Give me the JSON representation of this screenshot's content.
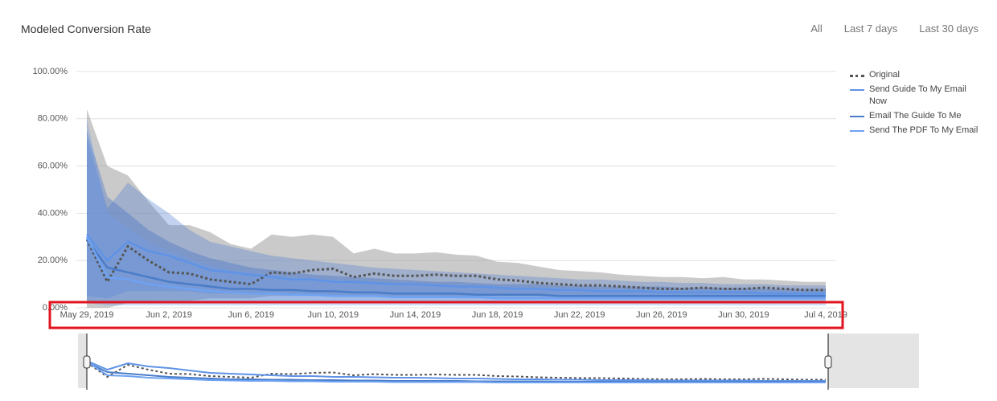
{
  "chart_data": {
    "type": "line",
    "title": "Modeled Conversion Rate",
    "range_buttons": [
      "All",
      "Last 7 days",
      "Last 30 days"
    ],
    "categories": [
      "May 29, 2019",
      null,
      null,
      null,
      "Jun 2, 2019",
      null,
      null,
      null,
      "Jun 6, 2019",
      null,
      null,
      null,
      "Jun 10, 2019",
      null,
      null,
      null,
      "Jun 14, 2019",
      null,
      null,
      null,
      "Jun 18, 2019",
      null,
      null,
      null,
      "Jun 22, 2019",
      null,
      null,
      null,
      "Jun 26, 2019",
      null,
      null,
      null,
      "Jun 30, 2019",
      null,
      null,
      null,
      "Jul 4, 2019"
    ],
    "ylim": [
      0,
      100
    ],
    "yticks": [
      {
        "value": 0,
        "label": "0.00%"
      },
      {
        "value": 20,
        "label": "20.00%"
      },
      {
        "value": 40,
        "label": "40.00%"
      },
      {
        "value": 60,
        "label": "60.00%"
      },
      {
        "value": 80,
        "label": "80.00%"
      },
      {
        "value": 100,
        "label": "100.00%"
      }
    ],
    "grid": true,
    "legend": "right",
    "series": [
      {
        "name": "Original",
        "color": "#555555",
        "line_style": "dotted",
        "band_color": "#9e9e9e",
        "values": [
          29,
          11,
          26,
          20,
          15,
          14.5,
          12,
          11,
          10,
          15,
          14.5,
          16,
          16.5,
          13,
          14.5,
          13.5,
          13.5,
          14,
          13.5,
          13.5,
          12,
          11.5,
          10.5,
          10,
          9.5,
          9.5,
          9,
          8.5,
          8,
          8,
          8.5,
          8,
          8,
          8.5,
          8,
          7.5,
          7.5
        ],
        "upper": [
          84,
          60,
          56,
          45,
          35,
          35,
          32,
          27,
          25,
          31,
          30,
          31,
          30,
          23,
          25,
          23,
          23,
          23.5,
          22.5,
          22,
          19.5,
          19,
          17.5,
          16,
          15.5,
          15,
          14,
          13.5,
          13,
          13,
          12.5,
          13,
          12,
          12,
          11.5,
          11,
          11
        ],
        "lower": [
          0,
          0,
          2,
          3,
          3,
          3,
          4,
          4,
          4,
          5,
          5,
          5,
          5,
          5,
          5,
          5,
          5,
          5,
          5,
          5,
          5,
          5,
          5,
          5,
          5,
          5,
          5,
          5,
          5,
          5,
          5,
          5,
          5,
          5,
          5,
          5,
          5
        ]
      },
      {
        "name": "Send Guide To My Email Now",
        "color": "#5f93e6",
        "band_color": "#4f7fd0",
        "values": [
          31,
          20,
          28,
          24,
          22,
          19,
          16,
          15,
          14,
          13,
          12,
          12,
          11,
          11,
          10.5,
          10,
          10,
          9.5,
          9,
          9,
          8.5,
          8,
          8,
          7.5,
          7.5,
          7,
          7,
          7,
          6.5,
          6.5,
          6.5,
          6.5,
          6.5,
          6,
          6,
          6,
          6
        ],
        "upper": [
          72,
          42,
          53,
          46,
          40,
          33,
          28,
          26,
          24,
          22,
          21,
          20,
          19,
          18,
          17,
          16.5,
          16,
          15.5,
          15,
          14.5,
          14,
          13.5,
          13,
          12.5,
          12,
          12,
          11.5,
          11,
          11,
          10.5,
          10.5,
          10,
          10,
          10,
          9.5,
          9.5,
          9.5
        ],
        "lower": [
          5,
          4,
          7,
          7,
          7,
          7,
          6,
          6,
          6,
          6,
          5,
          5,
          5,
          5,
          5,
          5,
          5,
          5,
          4,
          4,
          4,
          4,
          4,
          4,
          4,
          4,
          4,
          4,
          4,
          4,
          4,
          4,
          4,
          4,
          4,
          4,
          4
        ]
      },
      {
        "name": "Email The Guide To Me",
        "color": "#4a7cc8",
        "band_color": "#3f6bbf",
        "values": [
          29,
          17,
          15,
          13,
          11,
          10,
          9,
          8,
          8,
          7.5,
          7.5,
          7,
          7,
          6.5,
          6.5,
          6,
          6,
          6,
          6,
          5.5,
          5.5,
          5.5,
          5.5,
          5,
          5,
          5,
          5,
          5,
          5,
          5,
          5,
          5,
          5,
          5,
          5,
          5,
          5
        ],
        "upper": [
          75,
          47,
          40,
          33,
          28,
          24,
          21,
          19,
          17,
          16,
          15,
          14,
          13.5,
          13,
          12.5,
          12,
          11.5,
          11,
          11,
          10.5,
          10,
          10,
          10,
          9.5,
          9.5,
          9,
          9,
          9,
          9,
          8.5,
          8.5,
          8.5,
          8.5,
          8,
          8,
          8,
          8
        ],
        "lower": [
          3,
          2,
          2,
          2,
          2,
          2,
          2,
          2,
          2,
          2,
          2,
          2,
          2,
          2,
          2,
          2,
          2,
          2,
          2,
          2,
          2,
          2,
          2,
          2,
          2,
          2,
          2,
          2,
          2,
          2,
          2,
          2,
          2,
          2,
          2,
          2,
          2
        ]
      },
      {
        "name": "Send The PDF To My Email",
        "color": "#6ea2f2",
        "band_color": "#6f9de8",
        "values": [
          30,
          13,
          12,
          10,
          9,
          8,
          7,
          6.5,
          6,
          6,
          5.5,
          5.5,
          5,
          5,
          5,
          4.5,
          4.5,
          4.5,
          4.5,
          4.5,
          4,
          4,
          4,
          4,
          4,
          4,
          4,
          4,
          4,
          4,
          4,
          4,
          4,
          4,
          4,
          4,
          4
        ],
        "upper": [
          80,
          40,
          34,
          28,
          24,
          21,
          18,
          16,
          15,
          14,
          13,
          12.5,
          12,
          11.5,
          11,
          10.5,
          10,
          10,
          9.5,
          9.5,
          9,
          9,
          8.5,
          8.5,
          8.5,
          8,
          8,
          8,
          8,
          7.5,
          7.5,
          7.5,
          7.5,
          7.5,
          7,
          7,
          7
        ],
        "lower": [
          2,
          1,
          1,
          1,
          1,
          1,
          1,
          1,
          1,
          1,
          1,
          1,
          1,
          1,
          1,
          1,
          1,
          1,
          1,
          1,
          1,
          1,
          1,
          1,
          1,
          1,
          1,
          1,
          1,
          1,
          1,
          1,
          1,
          1,
          1,
          1,
          1
        ]
      }
    ]
  }
}
